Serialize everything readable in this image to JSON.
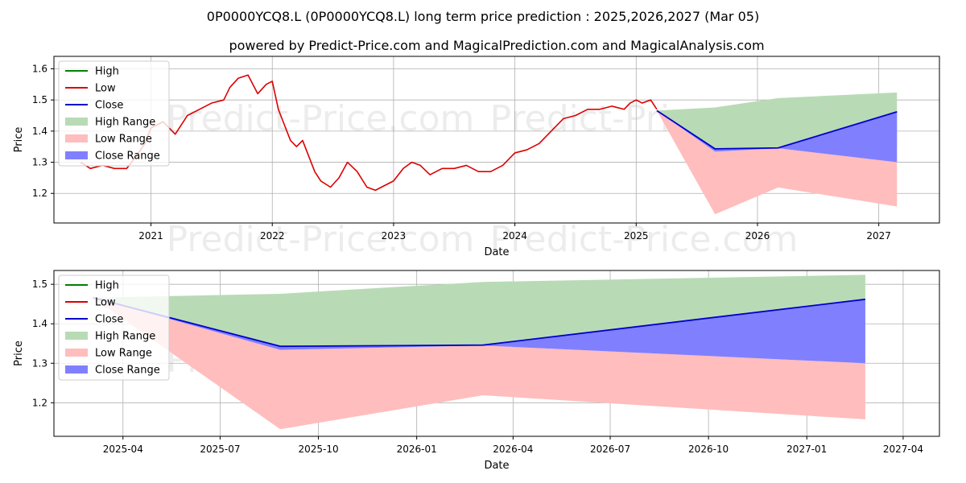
{
  "titles": {
    "main": "0P0000YCQ8.L (0P0000YCQ8.L) long term price prediction : 2025,2026,2027 (Mar 05)",
    "sub": "powered by Predict-Price.com and MagicalPrediction.com and MagicalAnalysis.com"
  },
  "watermark": "Predict-Price.com",
  "colors": {
    "high": "#008000",
    "low": "#dd0000",
    "close": "#0000cc",
    "high_range": "#b8dbb5",
    "low_range": "#ffbdbd",
    "close_range": "#8080ff",
    "grid": "#b0b0b0"
  },
  "legend": [
    {
      "label": "High",
      "kind": "line",
      "color_key": "high"
    },
    {
      "label": "Low",
      "kind": "line",
      "color_key": "low"
    },
    {
      "label": "Close",
      "kind": "line",
      "color_key": "close"
    },
    {
      "label": "High Range",
      "kind": "patch",
      "color_key": "high_range"
    },
    {
      "label": "Low Range",
      "kind": "patch",
      "color_key": "low_range"
    },
    {
      "label": "Close Range",
      "kind": "patch",
      "color_key": "close_range"
    }
  ],
  "chart_data": [
    {
      "id": "top",
      "type": "line",
      "xlabel": "Date",
      "ylabel": "Price",
      "xlim": [
        2020.2,
        2027.5
      ],
      "ylim": [
        1.105,
        1.64
      ],
      "x_ticks": [
        {
          "value": 2021,
          "label": "2021"
        },
        {
          "value": 2022,
          "label": "2022"
        },
        {
          "value": 2023,
          "label": "2023"
        },
        {
          "value": 2024,
          "label": "2024"
        },
        {
          "value": 2025,
          "label": "2025"
        },
        {
          "value": 2026,
          "label": "2026"
        },
        {
          "value": 2027,
          "label": "2027"
        }
      ],
      "y_ticks": [
        {
          "value": 1.2,
          "label": "1.2"
        },
        {
          "value": 1.3,
          "label": "1.3"
        },
        {
          "value": 1.4,
          "label": "1.4"
        },
        {
          "value": 1.5,
          "label": "1.5"
        },
        {
          "value": 1.6,
          "label": "1.6"
        }
      ],
      "history": [
        [
          2020.42,
          1.3
        ],
        [
          2020.5,
          1.28
        ],
        [
          2020.6,
          1.29
        ],
        [
          2020.7,
          1.28
        ],
        [
          2020.8,
          1.28
        ],
        [
          2020.88,
          1.32
        ],
        [
          2020.95,
          1.36
        ],
        [
          2021.0,
          1.41
        ],
        [
          2021.1,
          1.43
        ],
        [
          2021.2,
          1.39
        ],
        [
          2021.3,
          1.45
        ],
        [
          2021.4,
          1.47
        ],
        [
          2021.5,
          1.49
        ],
        [
          2021.6,
          1.5
        ],
        [
          2021.65,
          1.54
        ],
        [
          2021.72,
          1.57
        ],
        [
          2021.8,
          1.58
        ],
        [
          2021.88,
          1.52
        ],
        [
          2021.95,
          1.55
        ],
        [
          2022.0,
          1.56
        ],
        [
          2022.05,
          1.47
        ],
        [
          2022.1,
          1.42
        ],
        [
          2022.15,
          1.37
        ],
        [
          2022.2,
          1.35
        ],
        [
          2022.25,
          1.37
        ],
        [
          2022.3,
          1.32
        ],
        [
          2022.35,
          1.27
        ],
        [
          2022.4,
          1.24
        ],
        [
          2022.48,
          1.22
        ],
        [
          2022.55,
          1.25
        ],
        [
          2022.62,
          1.3
        ],
        [
          2022.7,
          1.27
        ],
        [
          2022.78,
          1.22
        ],
        [
          2022.85,
          1.21
        ],
        [
          2022.9,
          1.22
        ],
        [
          2023.0,
          1.24
        ],
        [
          2023.08,
          1.28
        ],
        [
          2023.15,
          1.3
        ],
        [
          2023.22,
          1.29
        ],
        [
          2023.3,
          1.26
        ],
        [
          2023.4,
          1.28
        ],
        [
          2023.5,
          1.28
        ],
        [
          2023.6,
          1.29
        ],
        [
          2023.7,
          1.27
        ],
        [
          2023.8,
          1.27
        ],
        [
          2023.9,
          1.29
        ],
        [
          2024.0,
          1.33
        ],
        [
          2024.1,
          1.34
        ],
        [
          2024.2,
          1.36
        ],
        [
          2024.3,
          1.4
        ],
        [
          2024.4,
          1.44
        ],
        [
          2024.5,
          1.45
        ],
        [
          2024.6,
          1.47
        ],
        [
          2024.7,
          1.47
        ],
        [
          2024.8,
          1.48
        ],
        [
          2024.9,
          1.47
        ],
        [
          2024.95,
          1.49
        ],
        [
          2025.0,
          1.5
        ],
        [
          2025.05,
          1.49
        ],
        [
          2025.12,
          1.5
        ],
        [
          2025.17,
          1.47
        ]
      ],
      "forecast": {
        "x": [
          2025.17,
          2025.65,
          2026.17,
          2027.15
        ],
        "high_upper": [
          1.466,
          1.476,
          1.506,
          1.524
        ],
        "high_lower": [
          1.466,
          1.345,
          1.345,
          1.345
        ],
        "low_upper": [
          1.466,
          1.334,
          1.345,
          1.3
        ],
        "low_lower": [
          1.466,
          1.133,
          1.219,
          1.158
        ],
        "close_upper": [
          1.466,
          1.343,
          1.346,
          1.462
        ],
        "close_lower": [
          1.466,
          1.334,
          1.345,
          1.3
        ],
        "close": [
          1.466,
          1.343,
          1.346,
          1.462
        ]
      }
    },
    {
      "id": "bottom",
      "type": "line",
      "xlabel": "Date",
      "ylabel": "Price",
      "xlim": [
        2025.07,
        2027.34
      ],
      "ylim": [
        1.115,
        1.535
      ],
      "x_ticks": [
        {
          "value": 2025.247,
          "label": "2025-04"
        },
        {
          "value": 2025.496,
          "label": "2025-07"
        },
        {
          "value": 2025.748,
          "label": "2025-10"
        },
        {
          "value": 2026.0,
          "label": "2026-01"
        },
        {
          "value": 2026.247,
          "label": "2026-04"
        },
        {
          "value": 2026.496,
          "label": "2026-07"
        },
        {
          "value": 2026.748,
          "label": "2026-10"
        },
        {
          "value": 2027.0,
          "label": "2027-01"
        },
        {
          "value": 2027.247,
          "label": "2027-04"
        }
      ],
      "y_ticks": [
        {
          "value": 1.2,
          "label": "1.2"
        },
        {
          "value": 1.3,
          "label": "1.3"
        },
        {
          "value": 1.4,
          "label": "1.4"
        },
        {
          "value": 1.5,
          "label": "1.5"
        }
      ],
      "forecast": {
        "x": [
          2025.17,
          2025.65,
          2026.17,
          2027.15
        ],
        "high_upper": [
          1.466,
          1.476,
          1.506,
          1.524
        ],
        "high_lower": [
          1.466,
          1.345,
          1.345,
          1.345
        ],
        "low_upper": [
          1.466,
          1.334,
          1.345,
          1.3
        ],
        "low_lower": [
          1.466,
          1.133,
          1.219,
          1.158
        ],
        "close_upper": [
          1.466,
          1.343,
          1.346,
          1.462
        ],
        "close_lower": [
          1.466,
          1.334,
          1.345,
          1.3
        ],
        "close": [
          1.466,
          1.343,
          1.346,
          1.462
        ]
      }
    }
  ]
}
